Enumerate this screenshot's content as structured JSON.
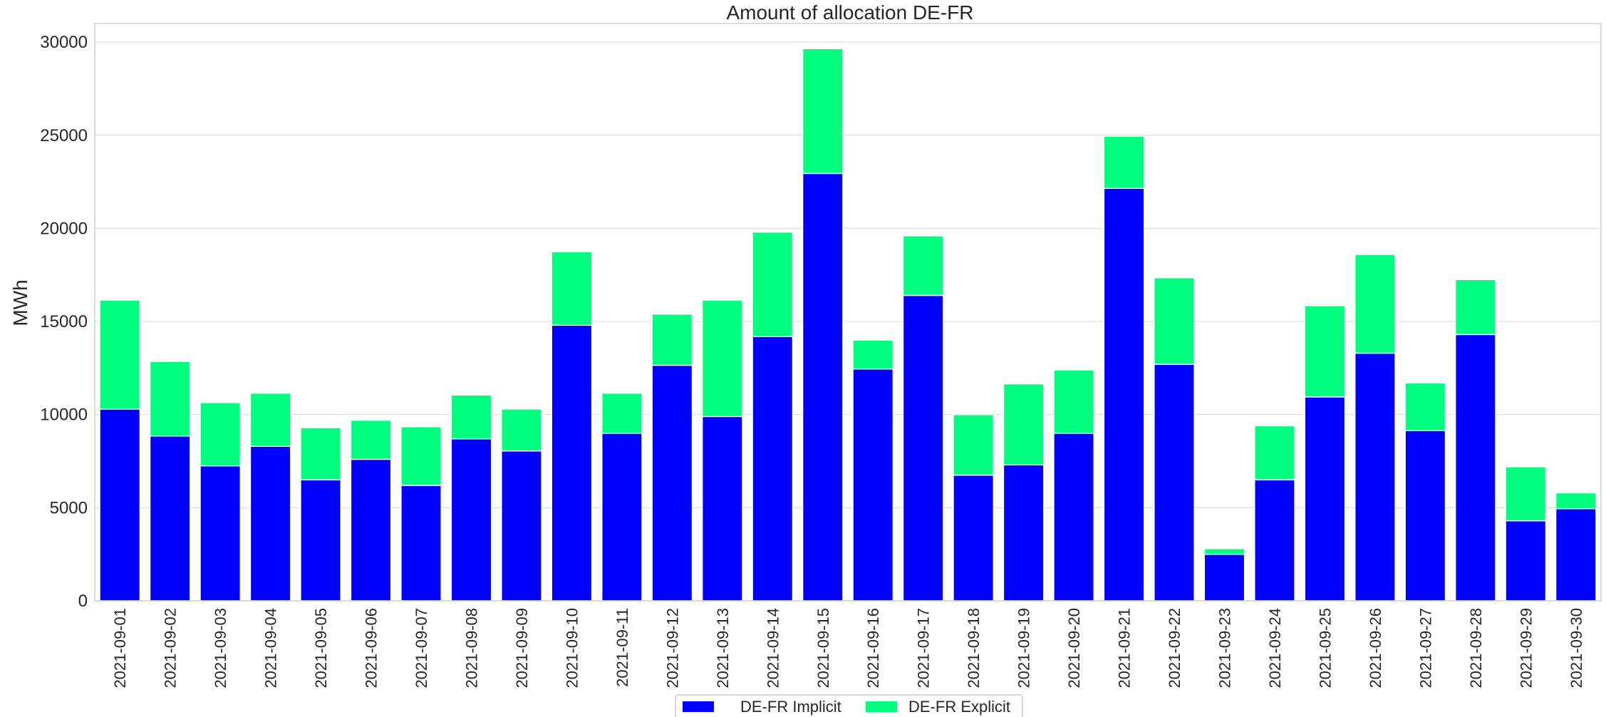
{
  "chart_data": {
    "type": "bar",
    "stacked": true,
    "title": "Amount of allocation DE-FR",
    "xlabel": "",
    "ylabel": "MWh",
    "ylim": [
      0,
      31000
    ],
    "yticks": [
      0,
      5000,
      10000,
      15000,
      20000,
      25000,
      30000
    ],
    "grid": true,
    "legend_position": "bottom-center",
    "categories": [
      "2021-09-01",
      "2021-09-02",
      "2021-09-03",
      "2021-09-04",
      "2021-09-05",
      "2021-09-06",
      "2021-09-07",
      "2021-09-08",
      "2021-09-09",
      "2021-09-10",
      "2021-09-11",
      "2021-09-12",
      "2021-09-13",
      "2021-09-14",
      "2021-09-15",
      "2021-09-16",
      "2021-09-17",
      "2021-09-18",
      "2021-09-19",
      "2021-09-20",
      "2021-09-21",
      "2021-09-22",
      "2021-09-23",
      "2021-09-24",
      "2021-09-25",
      "2021-09-26",
      "2021-09-27",
      "2021-09-28",
      "2021-09-29",
      "2021-09-30"
    ],
    "series": [
      {
        "name": "DE-FR Implicit",
        "color": "#0000ff",
        "values": [
          10300,
          8850,
          7250,
          8300,
          6500,
          7600,
          6200,
          8700,
          8050,
          14800,
          9000,
          12650,
          9900,
          14200,
          22950,
          12450,
          16400,
          6750,
          7300,
          9000,
          22150,
          12700,
          2500,
          6500,
          10950,
          13300,
          9150,
          14300,
          4300,
          4950
        ]
      },
      {
        "name": "DE-FR Explicit",
        "color": "#00ff7f",
        "values": [
          5850,
          4000,
          3400,
          2850,
          2800,
          2100,
          3150,
          2350,
          2250,
          3950,
          2150,
          2750,
          6250,
          5600,
          6700,
          1550,
          3200,
          3250,
          4350,
          3400,
          2800,
          4650,
          300,
          2900,
          4900,
          5300,
          2550,
          2950,
          2900,
          850
        ]
      }
    ]
  }
}
